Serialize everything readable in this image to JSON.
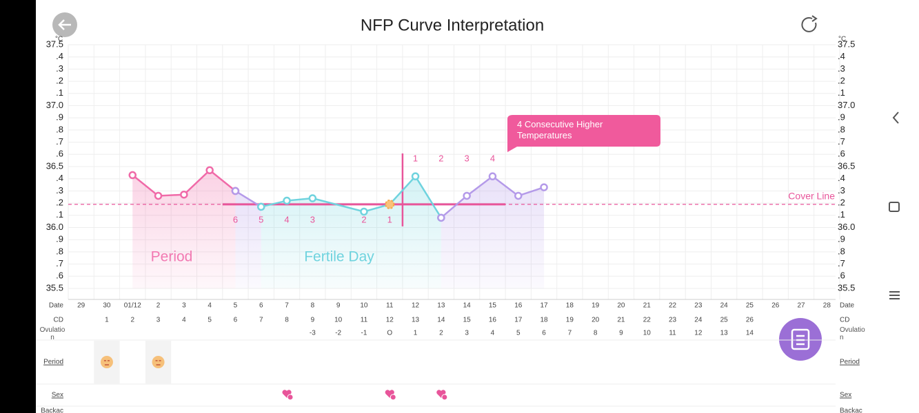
{
  "header": {
    "title": "NFP Curve Interpretation"
  },
  "chart_data": {
    "type": "line",
    "unit": "°C",
    "categories": [
      "29",
      "30",
      "01/12",
      "2",
      "3",
      "4",
      "5",
      "6",
      "7",
      "8",
      "9",
      "10",
      "11",
      "12",
      "13",
      "14",
      "15",
      "16",
      "17",
      "18",
      "19",
      "20",
      "21",
      "22",
      "23",
      "24",
      "25",
      "26",
      "27",
      "28"
    ],
    "connect_gaps": true,
    "series": [
      {
        "color": "#f06aa8",
        "values": [
          null,
          null,
          36.43,
          36.26,
          36.27,
          36.47,
          36.3,
          null,
          null,
          null,
          null,
          null,
          null,
          null,
          null,
          null,
          null,
          null,
          null,
          null,
          null,
          null,
          null,
          null,
          null,
          null,
          null,
          null,
          null,
          null
        ]
      },
      {
        "color": "#b49ae9",
        "values": [
          null,
          null,
          null,
          null,
          null,
          null,
          36.3,
          36.17,
          null,
          null,
          null,
          null,
          null,
          null,
          null,
          null,
          null,
          null,
          null,
          null,
          null,
          null,
          null,
          null,
          null,
          null,
          null,
          null,
          null,
          null
        ]
      },
      {
        "color": "#6fd3de",
        "values": [
          null,
          null,
          null,
          null,
          null,
          null,
          null,
          36.17,
          36.22,
          36.24,
          null,
          36.13,
          36.19,
          36.42,
          36.08,
          null,
          null,
          null,
          null,
          null,
          null,
          null,
          null,
          null,
          null,
          null,
          null,
          null,
          null,
          null
        ]
      },
      {
        "color": "#b49ae9",
        "values": [
          null,
          null,
          null,
          null,
          null,
          null,
          null,
          null,
          null,
          null,
          null,
          null,
          null,
          null,
          36.08,
          36.26,
          36.42,
          36.26,
          36.33,
          null,
          null,
          null,
          null,
          null,
          null,
          null,
          null,
          null,
          null,
          null
        ]
      }
    ],
    "ylim": [
      35.5,
      37.5
    ],
    "yticks": [
      37.5,
      {
        "value": 37.4,
        "label": ".4"
      },
      {
        "value": 37.3,
        "label": ".3"
      },
      {
        "value": 37.2,
        "label": ".2"
      },
      {
        "value": 37.1,
        "label": ".1"
      },
      {
        "value": 37,
        "label": "37.0"
      },
      {
        "value": 36.9,
        "label": ".9"
      },
      {
        "value": 36.8,
        "label": ".8"
      },
      {
        "value": 36.7,
        "label": ".7"
      },
      {
        "value": 36.6,
        "label": ".6"
      },
      36.5,
      {
        "value": 36.4,
        "label": ".4"
      },
      {
        "value": 36.3,
        "label": ".3"
      },
      {
        "value": 36.2,
        "label": ".2"
      },
      {
        "value": 36.1,
        "label": ".1"
      },
      {
        "value": 36,
        "label": "36.0"
      },
      {
        "value": 35.9,
        "label": ".9"
      },
      {
        "value": 35.8,
        "label": ".8"
      },
      {
        "value": 35.7,
        "label": ".7"
      },
      {
        "value": 35.6,
        "label": ".6"
      },
      35.5
    ],
    "grid": true,
    "cover_line": {
      "value": 36.19,
      "label": "Cover Line",
      "color": "#e8559a"
    },
    "low_counts": [
      null,
      null,
      null,
      null,
      null,
      null,
      6,
      5,
      4,
      3,
      null,
      2,
      1,
      null,
      null,
      null,
      null,
      null,
      null,
      null,
      null,
      null,
      null,
      null,
      null,
      null,
      null,
      null,
      null,
      null
    ],
    "high_counts": [
      null,
      null,
      null,
      null,
      null,
      null,
      null,
      null,
      null,
      null,
      null,
      null,
      null,
      1,
      2,
      3,
      4,
      null,
      null,
      null,
      null,
      null,
      null,
      null,
      null,
      null,
      null,
      null,
      null,
      null
    ],
    "annotation": "4 Consecutive Higher Temperatures",
    "period_label": "Period",
    "fertile_label": "Fertile Day"
  },
  "cycle_table": {
    "date_label": "Date",
    "cd_label": "CD",
    "cd": [
      null,
      1,
      2,
      3,
      4,
      5,
      6,
      7,
      8,
      9,
      10,
      11,
      12,
      13,
      14,
      15,
      16,
      17,
      18,
      19,
      20,
      21,
      22,
      23,
      24,
      25,
      26,
      null,
      null,
      null
    ],
    "ovulation_label": "Ovulation",
    "ovulation": [
      null,
      null,
      null,
      null,
      null,
      null,
      null,
      null,
      null,
      -3,
      -2,
      -1,
      "O",
      1,
      2,
      3,
      4,
      5,
      6,
      7,
      8,
      9,
      10,
      11,
      12,
      13,
      14,
      null,
      null,
      null
    ],
    "period_label": "Period",
    "sex_label": "Sex",
    "backache_label": "Backac"
  }
}
